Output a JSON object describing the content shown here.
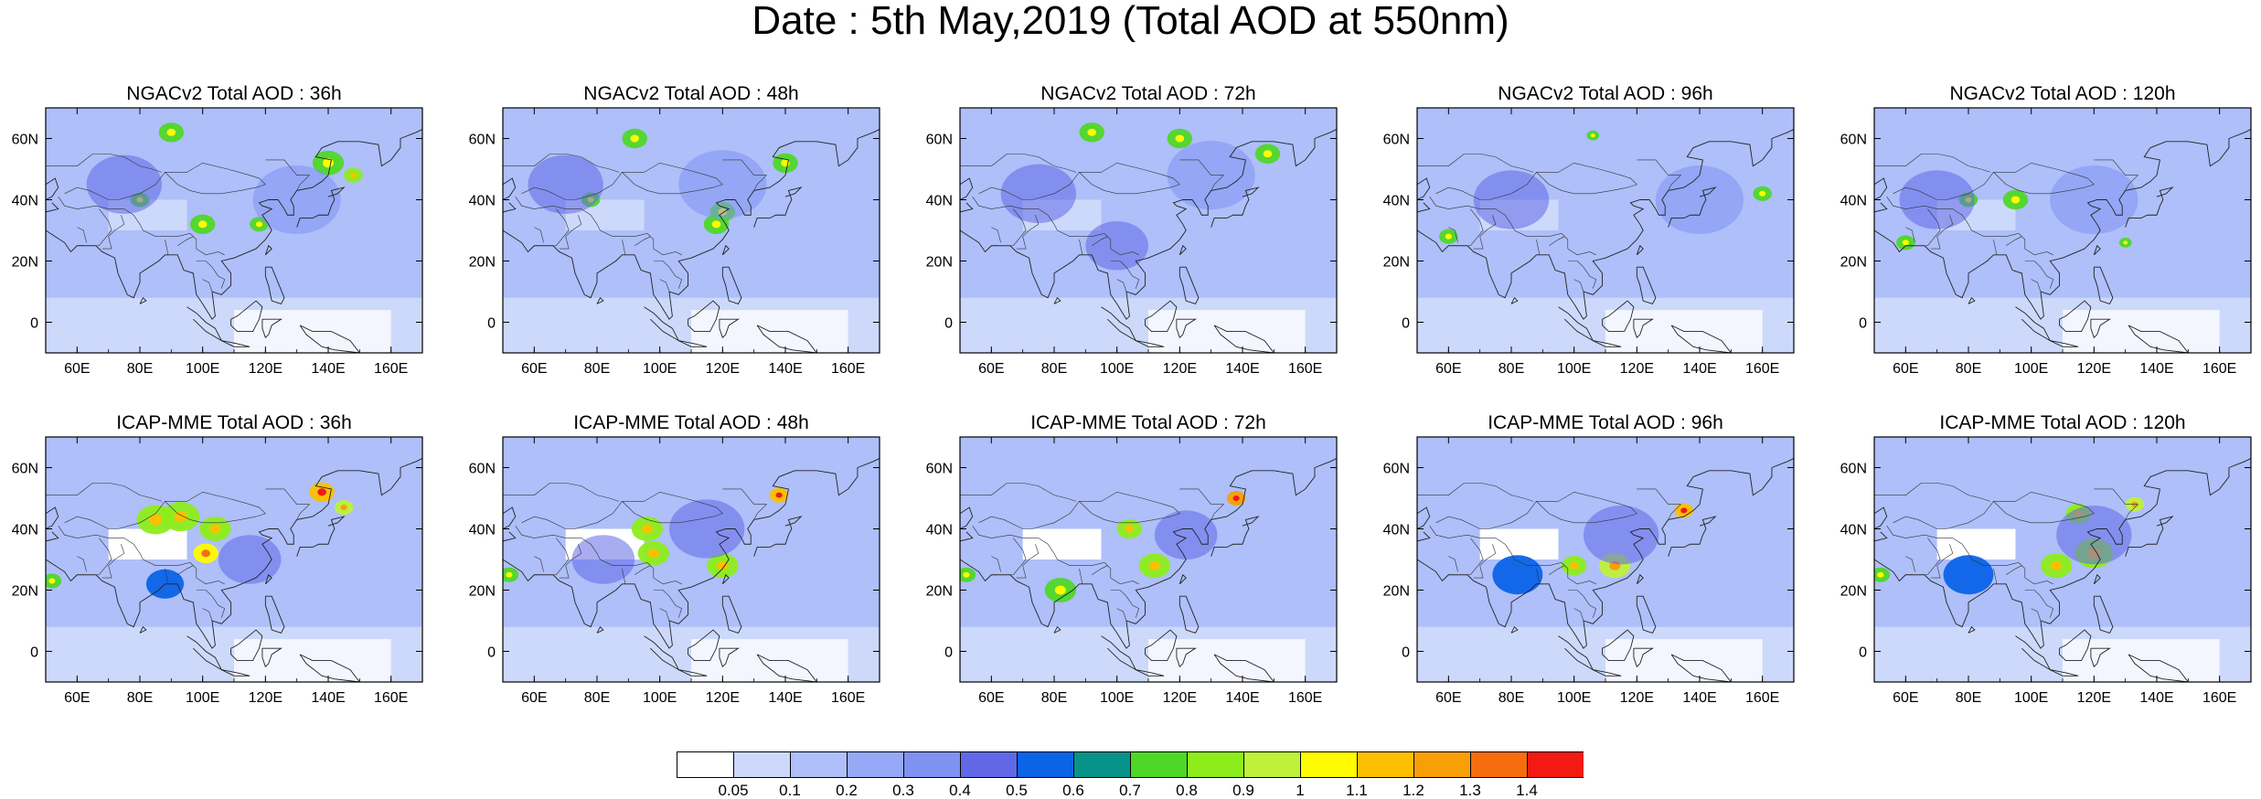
{
  "title": "Date : 5th May,2019 (Total AOD at 550nm)",
  "panels": [
    {
      "title": "NGACv2 Total AOD : 36h",
      "model": "NGACv2",
      "lead": "36h"
    },
    {
      "title": "NGACv2 Total AOD : 48h",
      "model": "NGACv2",
      "lead": "48h"
    },
    {
      "title": "NGACv2 Total AOD : 72h",
      "model": "NGACv2",
      "lead": "72h"
    },
    {
      "title": "NGACv2 Total AOD : 96h",
      "model": "NGACv2",
      "lead": "96h"
    },
    {
      "title": "NGACv2 Total AOD : 120h",
      "model": "NGACv2",
      "lead": "120h"
    },
    {
      "title": "ICAP-MME Total AOD : 36h",
      "model": "ICAP-MME",
      "lead": "36h"
    },
    {
      "title": "ICAP-MME Total AOD : 48h",
      "model": "ICAP-MME",
      "lead": "48h"
    },
    {
      "title": "ICAP-MME Total AOD : 72h",
      "model": "ICAP-MME",
      "lead": "72h"
    },
    {
      "title": "ICAP-MME Total AOD : 96h",
      "model": "ICAP-MME",
      "lead": "96h"
    },
    {
      "title": "ICAP-MME Total AOD : 120h",
      "model": "ICAP-MME",
      "lead": "120h"
    }
  ],
  "map": {
    "lon_range": [
      50,
      170
    ],
    "lat_range": [
      -10,
      70
    ],
    "lon_ticks": [
      {
        "value": 60,
        "label": "60E"
      },
      {
        "value": 80,
        "label": "80E"
      },
      {
        "value": 100,
        "label": "100E"
      },
      {
        "value": 120,
        "label": "120E"
      },
      {
        "value": 140,
        "label": "140E"
      },
      {
        "value": 160,
        "label": "160E"
      }
    ],
    "lat_ticks": [
      {
        "value": 60,
        "label": "60N"
      },
      {
        "value": 40,
        "label": "40N"
      },
      {
        "value": 20,
        "label": "20N"
      },
      {
        "value": 0,
        "label": "0"
      }
    ]
  },
  "colorbar": {
    "colors": [
      "#ffffff",
      "#cdd9fb",
      "#aebffa",
      "#97a9f6",
      "#7f91f1",
      "#6168e6",
      "#0b63e8",
      "#08938a",
      "#4fd728",
      "#8ded1b",
      "#bff03a",
      "#fffb00",
      "#fcc000",
      "#f99f06",
      "#f66d0d",
      "#f21a12"
    ],
    "labels": [
      "0.05",
      "0.1",
      "0.2",
      "0.3",
      "0.4",
      "0.5",
      "0.6",
      "0.7",
      "0.8",
      "0.9",
      "1",
      "1.1",
      "1.2",
      "1.3",
      "1.4"
    ]
  }
}
